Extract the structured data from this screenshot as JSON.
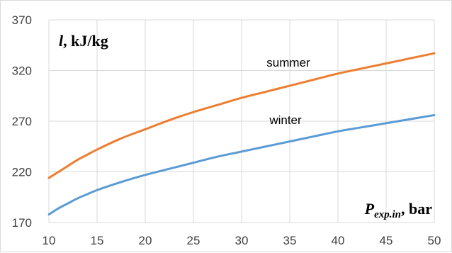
{
  "chart_data": {
    "type": "line",
    "title": "",
    "xlim": [
      10,
      50
    ],
    "ylim": [
      170,
      370
    ],
    "x_ticks": [
      10,
      15,
      20,
      25,
      30,
      35,
      40,
      45,
      50
    ],
    "y_ticks": [
      170,
      220,
      270,
      320,
      370
    ],
    "x_tick_labels": [
      "10",
      "15",
      "20",
      "25",
      "30",
      "35",
      "40",
      "45",
      "50"
    ],
    "y_tick_labels": [
      "170",
      "220",
      "270",
      "320",
      "370"
    ],
    "ylabel": {
      "symbol": "l",
      "rest": ", kJ/kg"
    },
    "xlabel": {
      "symbol": "P",
      "subscript": "exp.in",
      "rest": ", bar"
    },
    "grid": true,
    "x": [
      10,
      11,
      12,
      13,
      14,
      15,
      17.5,
      20,
      22.5,
      25,
      27.5,
      30,
      32.5,
      35,
      37.5,
      40,
      42.5,
      45,
      47.5,
      50
    ],
    "series": [
      {
        "name": "summer",
        "color": "#ED7D31",
        "values": [
          214,
          220,
          226,
          232,
          237,
          242,
          253,
          262,
          271,
          279,
          286,
          293,
          299,
          305,
          311,
          317,
          322,
          327,
          332,
          337
        ]
      },
      {
        "name": "winter",
        "color": "#5B9BD5",
        "values": [
          178,
          184,
          189,
          194,
          198,
          202,
          210,
          217,
          223,
          229,
          235,
          240,
          245,
          250,
          255,
          260,
          264,
          268,
          272,
          276
        ]
      }
    ]
  }
}
